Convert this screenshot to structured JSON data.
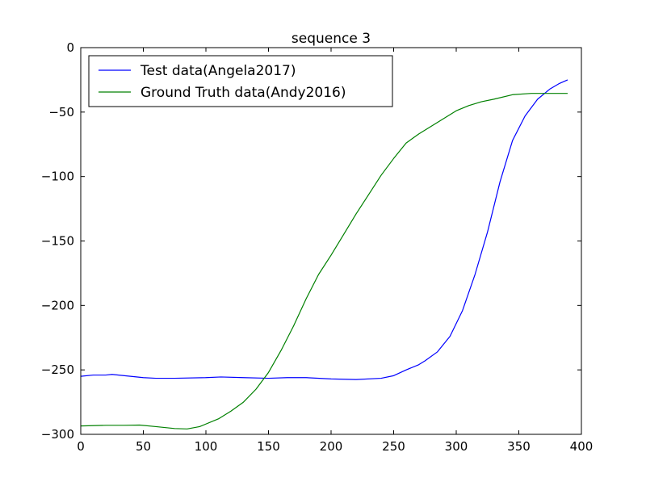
{
  "chart_data": {
    "type": "line",
    "title": "sequence 3",
    "xlabel": "",
    "ylabel": "",
    "xlim": [
      0,
      400
    ],
    "ylim": [
      -300,
      0
    ],
    "x_ticks": [
      0,
      50,
      100,
      150,
      200,
      250,
      300,
      350,
      400
    ],
    "y_ticks": [
      0,
      -50,
      -100,
      -150,
      -200,
      -250,
      -300
    ],
    "x_tick_labels": [
      "0",
      "50",
      "100",
      "150",
      "200",
      "250",
      "300",
      "350",
      "400"
    ],
    "y_tick_labels": [
      "0",
      "−50",
      "−100",
      "−150",
      "−200",
      "−250",
      "−300"
    ],
    "grid": false,
    "legend_position": "top-left",
    "series": [
      {
        "name": "Test data(Angela2017)",
        "color": "#0000ff",
        "x": [
          0,
          10,
          20,
          25,
          35,
          50,
          60,
          75,
          100,
          112,
          130,
          150,
          165,
          180,
          200,
          220,
          240,
          250,
          260,
          270,
          275,
          285,
          295,
          305,
          315,
          325,
          335,
          345,
          355,
          365,
          375,
          382,
          389
        ],
        "y": [
          -255,
          -254,
          -254,
          -253.5,
          -254.5,
          -256,
          -256.5,
          -256.5,
          -256,
          -255.5,
          -256,
          -256.5,
          -256,
          -256,
          -257,
          -257.5,
          -256.5,
          -254.5,
          -250,
          -246,
          -243,
          -236,
          -224,
          -204,
          -176,
          -143,
          -104,
          -72,
          -53,
          -40,
          -32,
          -28,
          -25
        ]
      },
      {
        "name": "Ground Truth data(Andy2016)",
        "color": "#008000",
        "x": [
          0,
          20,
          35,
          47,
          60,
          75,
          85,
          95,
          110,
          120,
          130,
          140,
          150,
          160,
          170,
          180,
          190,
          200,
          210,
          220,
          230,
          240,
          250,
          260,
          270,
          285,
          300,
          310,
          320,
          330,
          345,
          360,
          375,
          389
        ],
        "y": [
          -293.5,
          -293,
          -293,
          -292.8,
          -294,
          -295.5,
          -295.8,
          -294,
          -288,
          -282,
          -275,
          -265,
          -252,
          -235,
          -216,
          -195,
          -176,
          -161,
          -145,
          -129,
          -114,
          -99,
          -86,
          -74,
          -67,
          -58,
          -49,
          -45,
          -42,
          -40,
          -36.5,
          -35.5,
          -35.5,
          -35.5
        ]
      }
    ]
  }
}
